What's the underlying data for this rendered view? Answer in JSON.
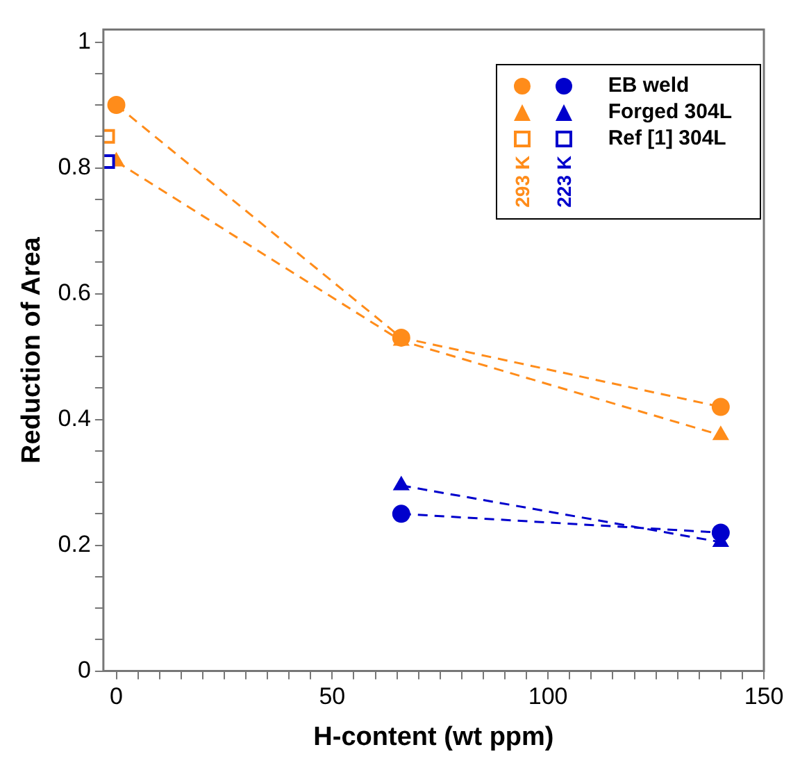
{
  "chart_data": {
    "type": "line",
    "xlabel": "H-content (wt ppm)",
    "ylabel": "Reduction of Area",
    "xlim": [
      -3,
      150
    ],
    "xticks": [
      0,
      {
        "value": 5,
        "label": null
      },
      {
        "value": 10,
        "label": null
      },
      {
        "value": 15,
        "label": null
      },
      {
        "value": 20,
        "label": null
      },
      {
        "value": 25,
        "label": null
      },
      {
        "value": 30,
        "label": null
      },
      {
        "value": 35,
        "label": null
      },
      {
        "value": 40,
        "label": null
      },
      {
        "value": 45,
        "label": null
      },
      50,
      {
        "value": 55,
        "label": null
      },
      {
        "value": 60,
        "label": null
      },
      {
        "value": 65,
        "label": null
      },
      {
        "value": 70,
        "label": null
      },
      {
        "value": 75,
        "label": null
      },
      {
        "value": 80,
        "label": null
      },
      {
        "value": 85,
        "label": null
      },
      {
        "value": 90,
        "label": null
      },
      {
        "value": 95,
        "label": null
      },
      100,
      {
        "value": 105,
        "label": null
      },
      {
        "value": 110,
        "label": null
      },
      {
        "value": 115,
        "label": null
      },
      {
        "value": 120,
        "label": null
      },
      {
        "value": 125,
        "label": null
      },
      {
        "value": 130,
        "label": null
      },
      {
        "value": 135,
        "label": null
      },
      {
        "value": 140,
        "label": null
      },
      {
        "value": 145,
        "label": null
      },
      150
    ],
    "ylim": [
      0,
      1.02
    ],
    "yticks": [
      0,
      {
        "value": 0.05,
        "label": null
      },
      {
        "value": 0.1,
        "label": null
      },
      {
        "value": 0.15,
        "label": null
      },
      0.2,
      {
        "value": 0.25,
        "label": null
      },
      {
        "value": 0.3,
        "label": null
      },
      {
        "value": 0.35,
        "label": null
      },
      0.4,
      {
        "value": 0.45,
        "label": null
      },
      {
        "value": 0.5,
        "label": null
      },
      {
        "value": 0.55,
        "label": null
      },
      0.6,
      {
        "value": 0.65,
        "label": null
      },
      {
        "value": 0.7,
        "label": null
      },
      {
        "value": 0.75,
        "label": null
      },
      0.8,
      {
        "value": 0.85,
        "label": null
      },
      {
        "value": 0.9,
        "label": null
      },
      {
        "value": 0.95,
        "label": null
      },
      1
    ],
    "grid": false,
    "legend": "top right",
    "line_style": "dashed",
    "annotations": [
      "293 K",
      "223 K"
    ],
    "series": [
      {
        "type": "line",
        "marker": "circle",
        "color": "#ff8c1a",
        "x": [
          0,
          66,
          140
        ],
        "values": [
          0.9,
          0.53,
          0.42
        ]
      },
      {
        "type": "line",
        "marker": "triangle",
        "color": "#ff8c1a",
        "x": [
          0,
          66,
          140
        ],
        "values": [
          0.81,
          0.525,
          0.375
        ]
      },
      {
        "type": "scatter",
        "marker": "square",
        "color": "#ff8c1a",
        "x": [
          -2
        ],
        "values": [
          0.85
        ]
      },
      {
        "name": "EB weld",
        "type": "line",
        "marker": "circle",
        "color": "#0000cc",
        "x": [
          66,
          140
        ],
        "values": [
          0.25,
          0.22
        ]
      },
      {
        "name": "Forged 304L",
        "type": "line",
        "marker": "triangle",
        "color": "#0000cc",
        "x": [
          66,
          140
        ],
        "values": [
          0.295,
          0.205
        ]
      },
      {
        "name": "Ref [1] 304L",
        "type": "scatter",
        "marker": "square",
        "color": "#0000cc",
        "x": [
          -2
        ],
        "values": [
          0.81
        ]
      }
    ]
  }
}
